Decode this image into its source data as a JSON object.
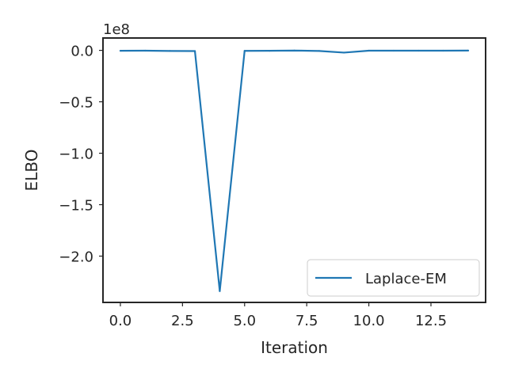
{
  "chart_data": {
    "type": "line",
    "xlabel": "Iteration",
    "ylabel": "ELBO",
    "offset_label": "1e8",
    "x": [
      0,
      1,
      2,
      3,
      4,
      5,
      6,
      7,
      8,
      9,
      10,
      11,
      12,
      13,
      14
    ],
    "series": [
      {
        "name": "Laplace-EM",
        "color": "#1f77b4",
        "values": [
          -400000,
          -300000,
          -600000,
          -700000,
          -234000000,
          -500000,
          -400000,
          -200000,
          -600000,
          -2200000,
          -300000,
          -300000,
          -300000,
          -300000,
          -200000
        ]
      }
    ],
    "xlim": [
      -0.7,
      14.7
    ],
    "ylim": [
      -245000000,
      12000000
    ],
    "xticks": [
      0,
      2.5,
      5,
      7.5,
      10,
      12.5
    ],
    "xtick_labels": [
      "0.0",
      "2.5",
      "5.0",
      "7.5",
      "10.0",
      "12.5"
    ],
    "yticks": [
      0,
      -50000000,
      -100000000,
      -150000000,
      -200000000
    ],
    "ytick_labels": [
      "0.0",
      "−0.5",
      "−1.0",
      "−1.5",
      "−2.0"
    ],
    "legend_position": "lower-right",
    "grid": false
  }
}
